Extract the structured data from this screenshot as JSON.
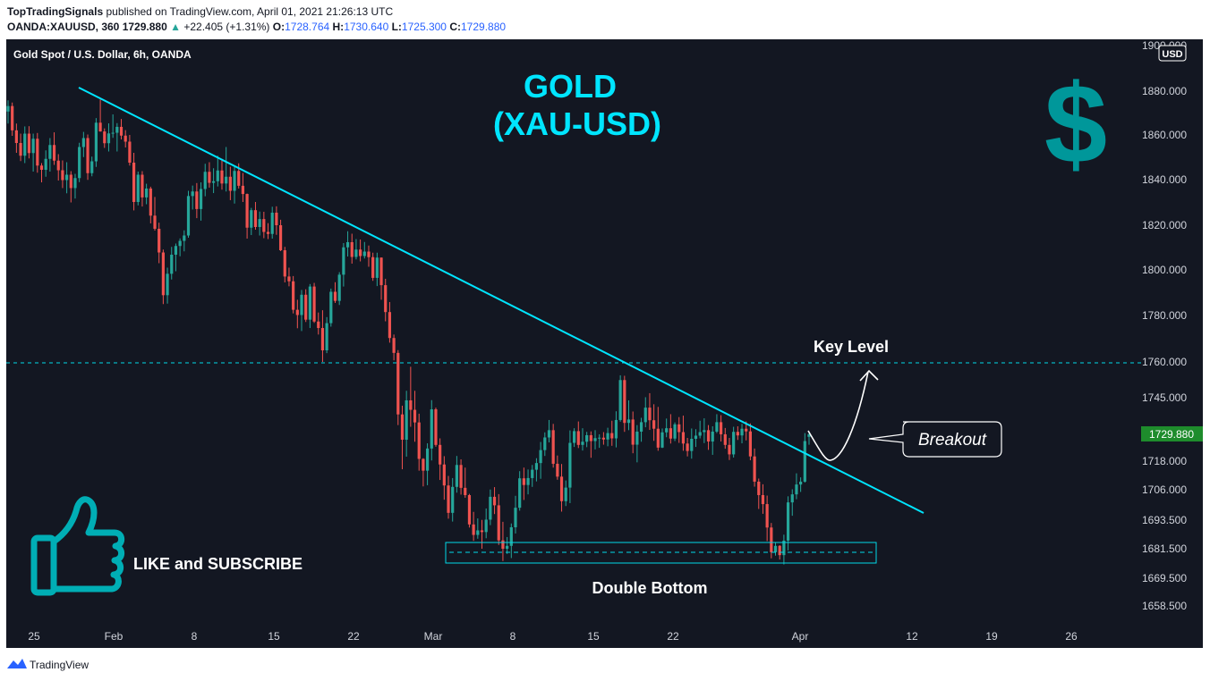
{
  "header": {
    "publisher": "TopTradingSignals",
    "published_text": "published on TradingView.com, April 01, 2021 21:26:13 UTC",
    "symbol": "OANDA:XAUUSD, 360",
    "last": "1729.880",
    "change": "+22.405 (+1.31%)",
    "o_label": "O:",
    "o": "1728.764",
    "h_label": "H:",
    "h": "1730.640",
    "l_label": "L:",
    "l": "1725.300",
    "c_label": "C:",
    "c": "1729.880",
    "up_color": "#26a69a"
  },
  "footer": {
    "brand": "TradingView"
  },
  "chart_data": {
    "type": "candlestick",
    "title": "Gold Spot / U.S. Dollar, 6h, OANDA",
    "currency_badge": "USD",
    "y_ticks": [
      "1880.000",
      "1860.000",
      "1840.000",
      "1820.000",
      "1800.000",
      "1780.000",
      "1760.000",
      "1745.000",
      "1729.880",
      "1718.000",
      "1706.000",
      "1693.500",
      "1681.500",
      "1669.500",
      "1658.500"
    ],
    "y_top_partial": "1900.000",
    "current_price": "1729.880",
    "x_ticks": [
      "25",
      "Feb",
      "8",
      "15",
      "22",
      "Mar",
      "8",
      "15",
      "22",
      "Apr",
      "12",
      "19",
      "26"
    ],
    "ylim": [
      1650,
      1900
    ],
    "annotations": {
      "headline_1": "GOLD",
      "headline_2": "(XAU-USD)",
      "key_level": "Key Level",
      "key_level_price": 1760,
      "breakout": "Breakout",
      "double_bottom": "Double Bottom",
      "like": "LIKE and SUBSCRIBE",
      "dollar_sign": "$"
    },
    "colors": {
      "background": "#131722",
      "up": "#26a69a",
      "down": "#ef5350",
      "trendline": "#00e5ff",
      "price_label": "#1e8c2c",
      "dollar": "#00979a"
    },
    "candles": [
      [
        1870.7,
        1875.8,
        1865.2,
        1873.2
      ],
      [
        1873.2,
        1874.8,
        1859.6,
        1862.1
      ],
      [
        1862.1,
        1865.2,
        1852.0,
        1856.4
      ],
      [
        1856.4,
        1860.6,
        1848.3,
        1850.7
      ],
      [
        1850.7,
        1863.9,
        1847.4,
        1860.6
      ],
      [
        1860.6,
        1864.0,
        1849.5,
        1851.9
      ],
      [
        1851.9,
        1860.6,
        1843.6,
        1858.3
      ],
      [
        1858.3,
        1860.9,
        1843.1,
        1846.3
      ],
      [
        1846.3,
        1847.4,
        1838.8,
        1844.4
      ],
      [
        1844.4,
        1853.1,
        1841.3,
        1849.3
      ],
      [
        1849.3,
        1858.6,
        1843.6,
        1855.5
      ],
      [
        1855.5,
        1861.2,
        1846.6,
        1848.5
      ],
      [
        1848.5,
        1851.4,
        1839.6,
        1844.2
      ],
      [
        1844.2,
        1848.6,
        1836.3,
        1839.8
      ],
      [
        1839.8,
        1847.8,
        1834.0,
        1842.2
      ],
      [
        1842.2,
        1843.8,
        1830.0,
        1836.3
      ],
      [
        1836.3,
        1842.6,
        1831.7,
        1840.7
      ],
      [
        1840.7,
        1856.5,
        1838.9,
        1854.6
      ],
      [
        1854.6,
        1861.4,
        1850.1,
        1858.6
      ],
      [
        1858.6,
        1860.2,
        1839.9,
        1842.9
      ],
      [
        1842.9,
        1850.3,
        1841.5,
        1848.2
      ],
      [
        1848.2,
        1867.7,
        1845.7,
        1865.6
      ],
      [
        1865.6,
        1876.2,
        1861.5,
        1861.6
      ],
      [
        1861.6,
        1863.0,
        1854.2,
        1856.3
      ],
      [
        1856.3,
        1865.3,
        1852.6,
        1860.7
      ],
      [
        1860.7,
        1869.4,
        1858.7,
        1861.0
      ],
      [
        1861.0,
        1865.4,
        1852.6,
        1863.7
      ],
      [
        1863.7,
        1867.3,
        1858.0,
        1859.7
      ],
      [
        1859.7,
        1862.2,
        1854.4,
        1857.0
      ],
      [
        1857.0,
        1860.0,
        1846.3,
        1847.6
      ],
      [
        1847.6,
        1852.0,
        1826.5,
        1830.2
      ],
      [
        1830.2,
        1843.6,
        1828.7,
        1842.2
      ],
      [
        1842.2,
        1843.8,
        1828.2,
        1832.2
      ],
      [
        1832.2,
        1838.2,
        1829.2,
        1836.1
      ],
      [
        1836.1,
        1836.9,
        1820.8,
        1824.2
      ],
      [
        1824.2,
        1832.4,
        1817.6,
        1818.4
      ],
      [
        1818.4,
        1821.1,
        1803.0,
        1807.8
      ],
      [
        1807.8,
        1809.1,
        1785.0,
        1788.9
      ],
      [
        1788.9,
        1801.0,
        1785.2,
        1798.3
      ],
      [
        1798.3,
        1810.3,
        1795.8,
        1806.8
      ],
      [
        1806.8,
        1811.8,
        1799.4,
        1810.7
      ],
      [
        1810.7,
        1814.1,
        1806.1,
        1813.0
      ],
      [
        1813.0,
        1817.7,
        1808.3,
        1815.4
      ],
      [
        1815.4,
        1835.1,
        1814.4,
        1832.8
      ],
      [
        1832.8,
        1837.4,
        1826.9,
        1834.8
      ],
      [
        1834.8,
        1838.5,
        1823.1,
        1827.1
      ],
      [
        1827.1,
        1838.8,
        1822.0,
        1835.9
      ],
      [
        1835.9,
        1847.1,
        1832.7,
        1843.5
      ],
      [
        1843.5,
        1847.8,
        1836.5,
        1838.6
      ],
      [
        1838.6,
        1845.1,
        1834.1,
        1839.3
      ],
      [
        1839.3,
        1850.7,
        1837.0,
        1844.1
      ],
      [
        1844.1,
        1849.3,
        1835.6,
        1838.3
      ],
      [
        1838.3,
        1854.6,
        1834.8,
        1841.3
      ],
      [
        1841.3,
        1845.8,
        1831.0,
        1835.1
      ],
      [
        1835.1,
        1845.8,
        1829.5,
        1843.9
      ],
      [
        1843.9,
        1847.3,
        1836.1,
        1837.3
      ],
      [
        1837.3,
        1843.0,
        1830.2,
        1833.7
      ],
      [
        1833.7,
        1833.9,
        1814.0,
        1818.9
      ],
      [
        1818.9,
        1827.6,
        1815.6,
        1826.6
      ],
      [
        1826.6,
        1830.2,
        1818.0,
        1819.2
      ],
      [
        1819.2,
        1826.0,
        1815.4,
        1822.7
      ],
      [
        1822.7,
        1825.9,
        1814.2,
        1817.0
      ],
      [
        1817.0,
        1820.9,
        1813.8,
        1816.1
      ],
      [
        1816.1,
        1828.1,
        1814.0,
        1825.5
      ],
      [
        1825.5,
        1828.3,
        1815.7,
        1820.0
      ],
      [
        1820.0,
        1822.4,
        1808.4,
        1808.8
      ],
      [
        1808.8,
        1810.3,
        1794.5,
        1797.1
      ],
      [
        1797.1,
        1801.0,
        1792.8,
        1795.0
      ],
      [
        1795.0,
        1797.3,
        1780.9,
        1782.5
      ],
      [
        1782.5,
        1786.9,
        1774.5,
        1780.2
      ],
      [
        1780.2,
        1791.2,
        1773.3,
        1789.1
      ],
      [
        1789.1,
        1791.5,
        1777.2,
        1778.2
      ],
      [
        1778.2,
        1793.8,
        1774.6,
        1792.7
      ],
      [
        1792.7,
        1794.3,
        1776.8,
        1777.4
      ],
      [
        1777.4,
        1781.3,
        1771.8,
        1774.6
      ],
      [
        1774.6,
        1782.3,
        1760.0,
        1765.0
      ],
      [
        1765.0,
        1779.3,
        1763.8,
        1776.7
      ],
      [
        1776.7,
        1791.8,
        1775.2,
        1790.4
      ],
      [
        1790.4,
        1794.6,
        1785.5,
        1786.4
      ],
      [
        1786.4,
        1799.0,
        1784.6,
        1797.9
      ],
      [
        1797.9,
        1812.0,
        1792.7,
        1810.1
      ],
      [
        1810.1,
        1817.3,
        1806.0,
        1812.4
      ],
      [
        1812.4,
        1816.2,
        1802.8,
        1805.8
      ],
      [
        1805.8,
        1813.8,
        1804.7,
        1809.1
      ],
      [
        1809.1,
        1813.6,
        1803.8,
        1806.2
      ],
      [
        1806.2,
        1812.5,
        1805.1,
        1808.2
      ],
      [
        1808.2,
        1810.9,
        1801.4,
        1805.7
      ],
      [
        1805.7,
        1807.7,
        1795.2,
        1796.5
      ],
      [
        1796.5,
        1807.7,
        1792.9,
        1805.5
      ],
      [
        1805.5,
        1805.6,
        1786.9,
        1793.3
      ],
      [
        1793.3,
        1796.1,
        1777.5,
        1781.5
      ],
      [
        1781.5,
        1785.9,
        1768.3,
        1770.3
      ],
      [
        1770.3,
        1771.8,
        1760.7,
        1763.9
      ],
      [
        1763.9,
        1765.1,
        1733.7,
        1738.1
      ],
      [
        1738.1,
        1741.7,
        1714.6,
        1727.5
      ],
      [
        1727.5,
        1747.9,
        1720.0,
        1743.9
      ],
      [
        1743.9,
        1758.0,
        1733.0,
        1740.0
      ],
      [
        1740.0,
        1747.9,
        1726.6,
        1734.8
      ],
      [
        1734.8,
        1738.4,
        1714.0,
        1719.0
      ],
      [
        1719.0,
        1719.3,
        1707.4,
        1714.0
      ],
      [
        1714.0,
        1725.9,
        1707.9,
        1723.6
      ],
      [
        1723.6,
        1744.0,
        1718.3,
        1740.2
      ],
      [
        1740.2,
        1740.9,
        1724.4,
        1725.2
      ],
      [
        1725.2,
        1728.1,
        1710.1,
        1716.6
      ],
      [
        1716.6,
        1720.2,
        1701.9,
        1707.8
      ],
      [
        1707.8,
        1711.8,
        1694.1,
        1696.5
      ],
      [
        1696.5,
        1710.9,
        1692.9,
        1707.2
      ],
      [
        1707.2,
        1720.3,
        1704.8,
        1716.4
      ],
      [
        1716.4,
        1718.8,
        1704.0,
        1706.8
      ],
      [
        1706.8,
        1715.3,
        1702.7,
        1703.8
      ],
      [
        1703.8,
        1704.3,
        1690.4,
        1691.7
      ],
      [
        1691.7,
        1696.9,
        1684.8,
        1687.3
      ],
      [
        1687.3,
        1694.2,
        1685.7,
        1689.2
      ],
      [
        1689.2,
        1693.6,
        1681.5,
        1688.5
      ],
      [
        1688.5,
        1698.3,
        1685.9,
        1693.7
      ],
      [
        1693.7,
        1706.1,
        1691.4,
        1703.1
      ],
      [
        1703.1,
        1707.1,
        1696.0,
        1699.6
      ],
      [
        1699.6,
        1704.2,
        1683.1,
        1685.0
      ],
      [
        1685.0,
        1692.8,
        1676.5,
        1681.5
      ],
      [
        1681.5,
        1686.4,
        1679.4,
        1682.7
      ],
      [
        1682.7,
        1692.1,
        1677.7,
        1690.5
      ],
      [
        1690.5,
        1703.5,
        1687.9,
        1698.6
      ],
      [
        1698.6,
        1713.8,
        1697.4,
        1710.8
      ],
      [
        1710.8,
        1715.3,
        1701.8,
        1708.0
      ],
      [
        1708.0,
        1714.5,
        1704.1,
        1710.9
      ],
      [
        1710.9,
        1716.4,
        1707.2,
        1714.4
      ],
      [
        1714.4,
        1719.3,
        1709.5,
        1717.2
      ],
      [
        1717.2,
        1726.5,
        1710.6,
        1722.9
      ],
      [
        1722.9,
        1730.7,
        1720.3,
        1728.5
      ],
      [
        1728.5,
        1735.8,
        1726.3,
        1731.6
      ],
      [
        1731.6,
        1734.2,
        1715.3,
        1716.9
      ],
      [
        1716.9,
        1720.5,
        1710.2,
        1711.5
      ],
      [
        1711.5,
        1716.8,
        1697.0,
        1701.3
      ],
      [
        1701.3,
        1709.9,
        1699.3,
        1706.9
      ],
      [
        1706.9,
        1731.5,
        1700.5,
        1726.1
      ],
      [
        1726.1,
        1732.4,
        1724.3,
        1731.2
      ],
      [
        1731.2,
        1735.2,
        1723.8,
        1725.2
      ],
      [
        1725.2,
        1732.4,
        1722.7,
        1726.6
      ],
      [
        1726.6,
        1730.9,
        1724.2,
        1729.5
      ],
      [
        1729.5,
        1731.1,
        1719.5,
        1726.9
      ],
      [
        1726.9,
        1731.6,
        1723.2,
        1728.2
      ],
      [
        1728.2,
        1729.9,
        1723.9,
        1728.4
      ],
      [
        1728.4,
        1730.8,
        1725.3,
        1727.6
      ],
      [
        1727.6,
        1732.6,
        1724.6,
        1730.4
      ],
      [
        1730.4,
        1735.5,
        1724.8,
        1728.1
      ],
      [
        1728.1,
        1739.4,
        1724.1,
        1735.8
      ],
      [
        1735.8,
        1754.4,
        1735.1,
        1752.4
      ],
      [
        1752.4,
        1754.2,
        1730.9,
        1734.6
      ],
      [
        1734.6,
        1743.9,
        1731.6,
        1736.0
      ],
      [
        1736.0,
        1739.3,
        1721.5,
        1725.3
      ],
      [
        1725.3,
        1733.7,
        1717.5,
        1731.0
      ],
      [
        1731.0,
        1736.7,
        1726.6,
        1734.9
      ],
      [
        1734.9,
        1745.2,
        1732.8,
        1740.9
      ],
      [
        1740.9,
        1746.9,
        1731.7,
        1735.7
      ],
      [
        1735.7,
        1742.3,
        1727.0,
        1732.2
      ],
      [
        1732.2,
        1741.2,
        1722.6,
        1724.0
      ],
      [
        1724.0,
        1732.3,
        1723.8,
        1730.7
      ],
      [
        1730.7,
        1736.4,
        1728.6,
        1732.4
      ],
      [
        1732.4,
        1738.2,
        1725.8,
        1728.0
      ],
      [
        1728.0,
        1734.8,
        1726.9,
        1734.0
      ],
      [
        1734.0,
        1737.0,
        1726.1,
        1730.8
      ],
      [
        1730.8,
        1737.6,
        1722.6,
        1725.8
      ],
      [
        1725.8,
        1728.3,
        1720.1,
        1722.5
      ],
      [
        1722.5,
        1732.3,
        1719.1,
        1727.9
      ],
      [
        1727.9,
        1732.0,
        1724.3,
        1729.3
      ],
      [
        1729.3,
        1735.5,
        1728.1,
        1730.8
      ],
      [
        1730.8,
        1736.5,
        1726.0,
        1731.6
      ],
      [
        1731.6,
        1733.7,
        1723.0,
        1726.7
      ],
      [
        1726.7,
        1733.2,
        1720.8,
        1731.0
      ],
      [
        1731.0,
        1738.2,
        1730.4,
        1734.9
      ],
      [
        1734.9,
        1737.8,
        1726.7,
        1729.9
      ],
      [
        1729.9,
        1732.5,
        1723.5,
        1725.2
      ],
      [
        1725.2,
        1728.3,
        1718.5,
        1721.0
      ],
      [
        1721.0,
        1733.0,
        1719.6,
        1730.9
      ],
      [
        1730.9,
        1733.2,
        1727.4,
        1729.4
      ],
      [
        1729.4,
        1734.2,
        1725.9,
        1732.2
      ],
      [
        1732.2,
        1735.2,
        1727.2,
        1731.1
      ],
      [
        1731.1,
        1734.4,
        1718.4,
        1720.1
      ],
      [
        1720.1,
        1723.6,
        1707.3,
        1709.4
      ],
      [
        1709.4,
        1710.7,
        1698.1,
        1703.8
      ],
      [
        1703.8,
        1708.3,
        1696.1,
        1700.1
      ],
      [
        1700.1,
        1703.6,
        1684.7,
        1690.4
      ],
      [
        1690.4,
        1692.3,
        1677.6,
        1680.1
      ],
      [
        1680.1,
        1684.1,
        1678.7,
        1682.7
      ],
      [
        1682.7,
        1683.0,
        1677.1,
        1678.9
      ],
      [
        1678.9,
        1687.4,
        1675.1,
        1684.9
      ],
      [
        1684.9,
        1703.3,
        1680.8,
        1700.8
      ],
      [
        1700.8,
        1706.2,
        1695.3,
        1704.1
      ],
      [
        1704.1,
        1712.9,
        1702.1,
        1708.2
      ],
      [
        1708.2,
        1711.2,
        1705.1,
        1709.4
      ],
      [
        1709.4,
        1730.4,
        1709.0,
        1726.9
      ],
      [
        1728.76,
        1730.64,
        1725.3,
        1729.88
      ]
    ]
  }
}
